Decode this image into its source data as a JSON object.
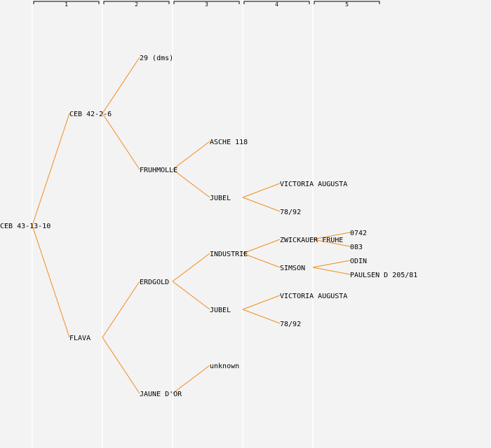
{
  "colors": {
    "background": "#f3f3f3",
    "edge": "#f08c1e",
    "column_line": "#ffffff",
    "text": "#000000"
  },
  "generations": [
    "1",
    "2",
    "3",
    "4",
    "5"
  ],
  "tree": {
    "id": "root",
    "label": "CEB 43-13-10",
    "gen": 0,
    "children": [
      {
        "id": "ceb42",
        "label": "CEB 42-2-6",
        "gen": 1,
        "children": [
          {
            "id": "dms29",
            "label": "29 (dms)",
            "gen": 2,
            "children": []
          },
          {
            "id": "fruhmolle",
            "label": "FRUHMOLLE",
            "gen": 2,
            "children": [
              {
                "id": "asche",
                "label": "ASCHE 118",
                "gen": 3,
                "children": []
              },
              {
                "id": "jubel1",
                "label": "JUBEL",
                "gen": 3,
                "children": [
                  {
                    "id": "va1",
                    "label": "VICTORIA AUGUSTA",
                    "gen": 4,
                    "children": []
                  },
                  {
                    "id": "n78a",
                    "label": "78/92",
                    "gen": 4,
                    "children": []
                  }
                ]
              }
            ]
          }
        ]
      },
      {
        "id": "flava",
        "label": "FLAVA",
        "gen": 1,
        "children": [
          {
            "id": "erdgold",
            "label": "ERDGOLD",
            "gen": 2,
            "children": [
              {
                "id": "industrie",
                "label": "INDUSTRIE",
                "gen": 3,
                "children": [
                  {
                    "id": "zwick",
                    "label": "ZWICKAUER FRUHE",
                    "gen": 4,
                    "children": [
                      {
                        "id": "n0742",
                        "label": "0742",
                        "gen": 5,
                        "children": []
                      },
                      {
                        "id": "n083",
                        "label": "083",
                        "gen": 5,
                        "children": []
                      }
                    ]
                  },
                  {
                    "id": "simson",
                    "label": "SIMSON",
                    "gen": 4,
                    "children": [
                      {
                        "id": "odin",
                        "label": "ODIN",
                        "gen": 5,
                        "children": []
                      },
                      {
                        "id": "paulsen",
                        "label": "PAULSEN D 205/81",
                        "gen": 5,
                        "children": []
                      }
                    ]
                  }
                ]
              },
              {
                "id": "jubel2",
                "label": "JUBEL",
                "gen": 3,
                "children": [
                  {
                    "id": "va2",
                    "label": "VICTORIA AUGUSTA",
                    "gen": 4,
                    "children": []
                  },
                  {
                    "id": "n78b",
                    "label": "78/92",
                    "gen": 4,
                    "children": []
                  }
                ]
              }
            ]
          },
          {
            "id": "jaune",
            "label": "JAUNE D'OR",
            "gen": 2,
            "children": [
              {
                "id": "unknown",
                "label": "unknown",
                "gen": 3,
                "children": []
              }
            ]
          }
        ]
      }
    ]
  }
}
